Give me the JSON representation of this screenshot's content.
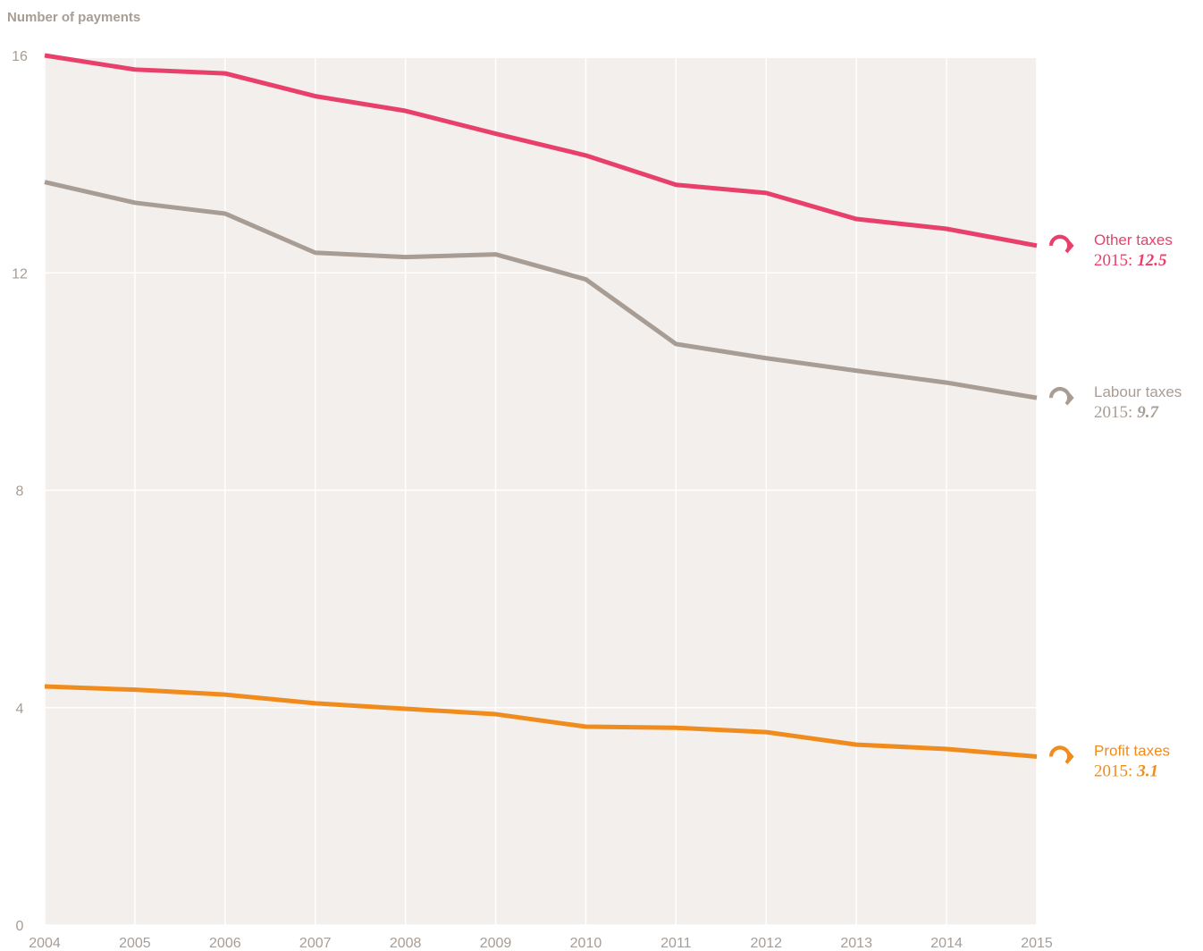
{
  "chart_data": {
    "type": "line",
    "y_axis_label": "Number of payments",
    "x": [
      2004,
      2005,
      2006,
      2007,
      2008,
      2009,
      2010,
      2011,
      2012,
      2013,
      2014,
      2015
    ],
    "xlim": [
      2004,
      2015
    ],
    "xticks": [
      2004,
      2005,
      2006,
      2007,
      2008,
      2009,
      2010,
      2011,
      2012,
      2013,
      2014,
      2015
    ],
    "ylim": [
      0,
      16
    ],
    "yticks": [
      0,
      4,
      8,
      12,
      16
    ],
    "grid": true,
    "series": [
      {
        "name": "Other taxes",
        "color": "#e8406a",
        "annotation_prefix": "2015:",
        "values": [
          16.0,
          15.74,
          15.67,
          15.25,
          14.98,
          14.56,
          14.16,
          13.62,
          13.47,
          12.99,
          12.81,
          12.5
        ]
      },
      {
        "name": "Labour taxes",
        "color": "#a89d94",
        "annotation_prefix": "2015:",
        "values": [
          13.67,
          13.29,
          13.09,
          12.37,
          12.29,
          12.34,
          11.88,
          10.69,
          10.43,
          10.2,
          9.98,
          9.7
        ]
      },
      {
        "name": "Profit taxes",
        "color": "#f08c1e",
        "annotation_prefix": "2015:",
        "values": [
          4.39,
          4.33,
          4.24,
          4.08,
          3.98,
          3.88,
          3.65,
          3.63,
          3.55,
          3.32,
          3.24,
          3.1
        ]
      }
    ]
  }
}
